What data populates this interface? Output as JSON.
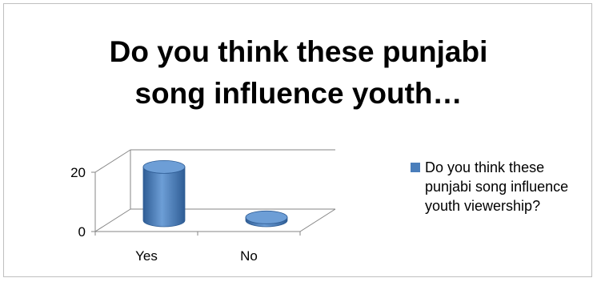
{
  "chart_data": {
    "type": "bar",
    "style": "3d-cylinder",
    "title_lines": [
      "Do you think these punjabi",
      "song influence youth…"
    ],
    "categories": [
      "Yes",
      "No"
    ],
    "series": [
      {
        "name": "Do you think these punjabi song influence youth viewership?",
        "values": [
          18,
          1
        ]
      }
    ],
    "y_ticks": [
      "0",
      "20"
    ],
    "ylim": [
      0,
      20
    ],
    "legend_position": "right",
    "grid": true,
    "colors": {
      "series": "#4a7ebb",
      "series_light": "#6d9ed6",
      "series_dark": "#2f5d95",
      "axis": "#868686"
    }
  }
}
